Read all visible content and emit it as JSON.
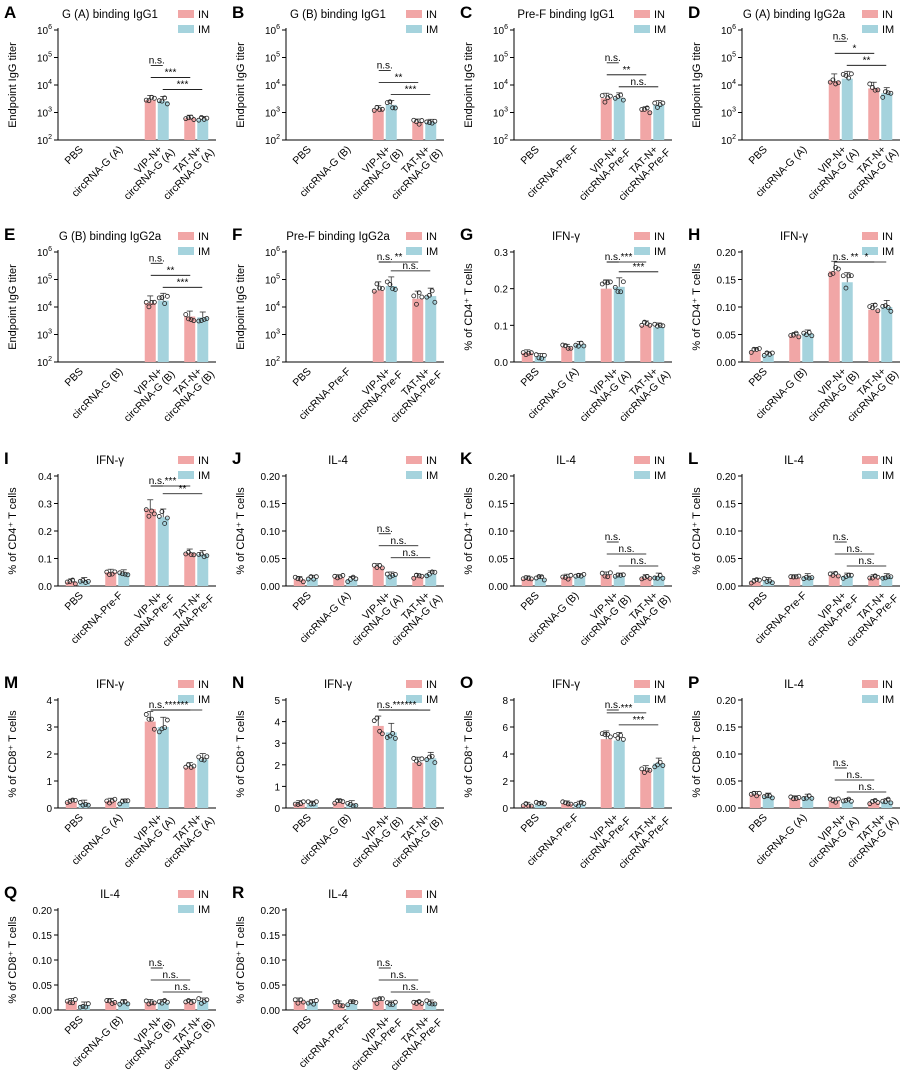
{
  "legend_labels": [
    "IN",
    "IM"
  ],
  "colors": {
    "IN": "#F1A6A6",
    "IM": "#A5D3DD"
  },
  "chart_data": [
    {
      "id": "A",
      "type": "bar",
      "title": "G (A) binding IgG1",
      "ylabel": "Endpoint IgG titer",
      "log": true,
      "ylim": [
        100,
        1000000
      ],
      "yticks": [
        "10^2",
        "10^3",
        "10^4",
        "10^5",
        "10^6"
      ],
      "categories": [
        "PBS",
        "circRNA-G (A)",
        "VIP-N+ circRNA-G (A)",
        "TAT-N+ circRNA-G (A)"
      ],
      "series": [
        {
          "name": "IN",
          "values": [
            null,
            null,
            2800,
            620
          ]
        },
        {
          "name": "IM",
          "values": [
            null,
            null,
            2600,
            560
          ]
        }
      ],
      "comparisons": [
        {
          "label": "n.s."
        },
        {
          "label": "***"
        },
        {
          "label": "***"
        }
      ]
    },
    {
      "id": "B",
      "type": "bar",
      "title": "G (B) binding IgG1",
      "ylabel": "Endpoint IgG titer",
      "log": true,
      "ylim": [
        100,
        1000000
      ],
      "yticks": [
        "10^2",
        "10^3",
        "10^4",
        "10^5",
        "10^6"
      ],
      "categories": [
        "PBS",
        "circRNA-G (B)",
        "VIP-N+ circRNA-G (B)",
        "TAT-N+ circRNA-G (B)"
      ],
      "series": [
        {
          "name": "IN",
          "values": [
            null,
            null,
            1300,
            450
          ]
        },
        {
          "name": "IM",
          "values": [
            null,
            null,
            1900,
            440
          ]
        }
      ],
      "comparisons": [
        {
          "label": "n.s."
        },
        {
          "label": "**"
        },
        {
          "label": "***"
        }
      ]
    },
    {
      "id": "C",
      "type": "bar",
      "title": "Pre-F binding IgG1",
      "ylabel": "Endpoint IgG titer",
      "log": true,
      "ylim": [
        100,
        1000000
      ],
      "yticks": [
        "10^2",
        "10^3",
        "10^4",
        "10^5",
        "10^6"
      ],
      "categories": [
        "PBS",
        "circRNA-Pre-F",
        "VIP-N+ circRNA-Pre-F",
        "TAT-N+ circRNA-Pre-F"
      ],
      "series": [
        {
          "name": "IN",
          "values": [
            null,
            null,
            3300,
            1200
          ]
        },
        {
          "name": "IM",
          "values": [
            null,
            null,
            3400,
            1900
          ]
        }
      ],
      "comparisons": [
        {
          "label": "n.s."
        },
        {
          "label": "**"
        },
        {
          "label": "n.s."
        }
      ]
    },
    {
      "id": "D",
      "type": "bar",
      "title": "G (A) binding IgG2a",
      "ylabel": "Endpoint IgG titer",
      "log": true,
      "ylim": [
        100,
        1000000
      ],
      "yticks": [
        "10^2",
        "10^3",
        "10^4",
        "10^5",
        "10^6"
      ],
      "categories": [
        "PBS",
        "circRNA-G (A)",
        "VIP-N+ circRNA-G (A)",
        "TAT-N+ circRNA-G (A)"
      ],
      "series": [
        {
          "name": "IN",
          "values": [
            null,
            null,
            14000,
            7500
          ]
        },
        {
          "name": "IM",
          "values": [
            null,
            null,
            17000,
            5000
          ]
        }
      ],
      "comparisons": [
        {
          "label": "n.s."
        },
        {
          "label": "*"
        },
        {
          "label": "**"
        }
      ]
    },
    {
      "id": "E",
      "type": "bar",
      "title": "G (B) binding IgG2a",
      "ylabel": "Endpoint IgG titer",
      "log": true,
      "ylim": [
        100,
        1000000
      ],
      "yticks": [
        "10^2",
        "10^3",
        "10^4",
        "10^5",
        "10^6"
      ],
      "categories": [
        "PBS",
        "circRNA-G (B)",
        "VIP-N+ circRNA-G (B)",
        "TAT-N+ circRNA-G (B)"
      ],
      "series": [
        {
          "name": "IN",
          "values": [
            null,
            null,
            14000,
            4500
          ]
        },
        {
          "name": "IM",
          "values": [
            null,
            null,
            17000,
            4200
          ]
        }
      ],
      "comparisons": [
        {
          "label": "n.s."
        },
        {
          "label": "**"
        },
        {
          "label": "***"
        }
      ]
    },
    {
      "id": "F",
      "type": "bar",
      "title": "Pre-F binding IgG2a",
      "ylabel": "Endpoint IgG titer",
      "log": true,
      "ylim": [
        100,
        1000000
      ],
      "yticks": [
        "10^2",
        "10^3",
        "10^4",
        "10^5",
        "10^6"
      ],
      "categories": [
        "PBS",
        "circRNA-Pre-F",
        "VIP-N+ circRNA-Pre-F",
        "TAT-N+ circRNA-Pre-F"
      ],
      "series": [
        {
          "name": "IN",
          "values": [
            null,
            null,
            40000,
            20000
          ]
        },
        {
          "name": "IM",
          "values": [
            null,
            null,
            58000,
            25000
          ]
        }
      ],
      "comparisons": [
        {
          "label": "n.s."
        },
        {
          "label": "**"
        },
        {
          "label": "n.s."
        }
      ]
    },
    {
      "id": "G",
      "type": "bar",
      "title": "IFN-γ",
      "ylabel": "% of CD4⁺ T cells",
      "log": false,
      "ylim": [
        0,
        0.3
      ],
      "yticks": [
        "0.0",
        "0.1",
        "0.2",
        "0.3"
      ],
      "categories": [
        "PBS",
        "circRNA-G (A)",
        "VIP-N+ circRNA-G (A)",
        "TAT-N+ circRNA-G (A)"
      ],
      "series": [
        {
          "name": "IN",
          "values": [
            0.025,
            0.04,
            0.2,
            0.1
          ]
        },
        {
          "name": "IM",
          "values": [
            0.015,
            0.048,
            0.205,
            0.095
          ]
        }
      ],
      "comparisons": [
        {
          "label": "n.s."
        },
        {
          "label": "***"
        },
        {
          "label": "***"
        }
      ]
    },
    {
      "id": "H",
      "type": "bar",
      "title": "IFN-γ",
      "ylabel": "% of CD4⁺ T cells",
      "log": false,
      "ylim": [
        0,
        0.2
      ],
      "yticks": [
        "0.00",
        "0.05",
        "0.10",
        "0.15",
        "0.20"
      ],
      "categories": [
        "PBS",
        "circRNA-G (B)",
        "VIP-N+ circRNA-G (B)",
        "TAT-N+ circRNA-G (B)"
      ],
      "series": [
        {
          "name": "IN",
          "values": [
            0.02,
            0.048,
            0.165,
            0.095
          ]
        },
        {
          "name": "IM",
          "values": [
            0.013,
            0.052,
            0.145,
            0.1
          ]
        }
      ],
      "comparisons": [
        {
          "label": "n.s."
        },
        {
          "label": "**"
        },
        {
          "label": "*"
        }
      ]
    },
    {
      "id": "I",
      "type": "bar",
      "title": "IFN-γ",
      "ylabel": "% of CD4⁺ T cells",
      "log": false,
      "ylim": [
        0,
        0.4
      ],
      "yticks": [
        "0.0",
        "0.1",
        "0.2",
        "0.3",
        "0.4"
      ],
      "categories": [
        "PBS",
        "circRNA-Pre-F",
        "VIP-N+ circRNA-Pre-F",
        "TAT-N+ circRNA-Pre-F"
      ],
      "series": [
        {
          "name": "IN",
          "values": [
            0.015,
            0.05,
            0.28,
            0.12
          ]
        },
        {
          "name": "IM",
          "values": [
            0.02,
            0.048,
            0.25,
            0.115
          ]
        }
      ],
      "comparisons": [
        {
          "label": "n.s."
        },
        {
          "label": "***"
        },
        {
          "label": "**"
        }
      ]
    },
    {
      "id": "J",
      "type": "bar",
      "title": "IL-4",
      "ylabel": "% of CD4⁺ T cells",
      "log": false,
      "ylim": [
        0,
        0.2
      ],
      "yticks": [
        "0.00",
        "0.05",
        "0.10",
        "0.15",
        "0.20"
      ],
      "categories": [
        "PBS",
        "circRNA-G (A)",
        "VIP-N+ circRNA-G (A)",
        "TAT-N+ circRNA-G (A)"
      ],
      "series": [
        {
          "name": "IN",
          "values": [
            0.012,
            0.015,
            0.035,
            0.017
          ]
        },
        {
          "name": "IM",
          "values": [
            0.014,
            0.012,
            0.02,
            0.022
          ]
        }
      ],
      "comparisons": [
        {
          "label": "n.s."
        },
        {
          "label": "n.s."
        },
        {
          "label": "n.s."
        }
      ]
    },
    {
      "id": "K",
      "type": "bar",
      "title": "IL-4",
      "ylabel": "% of CD4⁺ T cells",
      "log": false,
      "ylim": [
        0,
        0.2
      ],
      "yticks": [
        "0.00",
        "0.05",
        "0.10",
        "0.15",
        "0.20"
      ],
      "categories": [
        "PBS",
        "circRNA-G (B)",
        "VIP-N+ circRNA-G (B)",
        "TAT-N+ circRNA-G (B)"
      ],
      "series": [
        {
          "name": "IN",
          "values": [
            0.013,
            0.016,
            0.02,
            0.015
          ]
        },
        {
          "name": "IM",
          "values": [
            0.013,
            0.017,
            0.018,
            0.018
          ]
        }
      ],
      "comparisons": [
        {
          "label": "n.s."
        },
        {
          "label": "n.s."
        },
        {
          "label": "n.s."
        }
      ]
    },
    {
      "id": "L",
      "type": "bar",
      "title": "IL-4",
      "ylabel": "% of CD4⁺ T cells",
      "log": false,
      "ylim": [
        0,
        0.2
      ],
      "yticks": [
        "0.00",
        "0.05",
        "0.10",
        "0.15",
        "0.20"
      ],
      "categories": [
        "PBS",
        "circRNA-Pre-F",
        "VIP-N+ circRNA-Pre-F",
        "TAT-N+ circRNA-Pre-F"
      ],
      "series": [
        {
          "name": "IN",
          "values": [
            0.008,
            0.015,
            0.02,
            0.015
          ]
        },
        {
          "name": "IM",
          "values": [
            0.01,
            0.017,
            0.018,
            0.017
          ]
        }
      ],
      "comparisons": [
        {
          "label": "n.s."
        },
        {
          "label": "n.s."
        },
        {
          "label": "n.s."
        }
      ]
    },
    {
      "id": "M",
      "type": "bar",
      "title": "IFN-γ",
      "ylabel": "% of CD8⁺ T cells",
      "log": false,
      "ylim": [
        0,
        4
      ],
      "yticks": [
        "0",
        "1",
        "2",
        "3",
        "4"
      ],
      "categories": [
        "PBS",
        "circRNA-G (A)",
        "VIP-N+ circRNA-G (A)",
        "TAT-N+ circRNA-G (A)"
      ],
      "series": [
        {
          "name": "IN",
          "values": [
            0.22,
            0.25,
            3.2,
            1.5
          ]
        },
        {
          "name": "IM",
          "values": [
            0.18,
            0.22,
            3.0,
            1.8
          ]
        }
      ],
      "comparisons": [
        {
          "label": "n.s."
        },
        {
          "label": "***"
        },
        {
          "label": "***"
        }
      ]
    },
    {
      "id": "N",
      "type": "bar",
      "title": "IFN-γ",
      "ylabel": "% of CD8⁺ T cells",
      "log": false,
      "ylim": [
        0,
        5
      ],
      "yticks": [
        "0",
        "1",
        "2",
        "3",
        "4",
        "5"
      ],
      "categories": [
        "PBS",
        "circRNA-G (B)",
        "VIP-N+ circRNA-G (B)",
        "TAT-N+ circRNA-G (B)"
      ],
      "series": [
        {
          "name": "IN",
          "values": [
            0.2,
            0.25,
            3.8,
            2.1
          ]
        },
        {
          "name": "IM",
          "values": [
            0.18,
            0.2,
            3.5,
            2.3
          ]
        }
      ],
      "comparisons": [
        {
          "label": "n.s."
        },
        {
          "label": "***"
        },
        {
          "label": "***"
        }
      ]
    },
    {
      "id": "O",
      "type": "bar",
      "title": "IFN-γ",
      "ylabel": "% of CD8⁺ T cells",
      "log": false,
      "ylim": [
        0,
        8
      ],
      "yticks": [
        "0",
        "2",
        "4",
        "6",
        "8"
      ],
      "categories": [
        "PBS",
        "circRNA-Pre-F",
        "VIP-N+ circRNA-Pre-F",
        "TAT-N+ circRNA-Pre-F"
      ],
      "series": [
        {
          "name": "IN",
          "values": [
            0.2,
            0.3,
            5.1,
            2.8
          ]
        },
        {
          "name": "IM",
          "values": [
            0.25,
            0.28,
            5.0,
            3.3
          ]
        }
      ],
      "comparisons": [
        {
          "label": "n.s."
        },
        {
          "label": "***"
        },
        {
          "label": "***"
        }
      ]
    },
    {
      "id": "P",
      "type": "bar",
      "title": "IL-4",
      "ylabel": "% of CD8⁺ T cells",
      "log": false,
      "ylim": [
        0,
        0.2
      ],
      "yticks": [
        "0.00",
        "0.05",
        "0.10",
        "0.15",
        "0.20"
      ],
      "categories": [
        "PBS",
        "circRNA-G (A)",
        "VIP-N+ circRNA-G (A)",
        "TAT-N+ circRNA-G (A)"
      ],
      "series": [
        {
          "name": "IN",
          "values": [
            0.025,
            0.017,
            0.013,
            0.01
          ]
        },
        {
          "name": "IM",
          "values": [
            0.022,
            0.02,
            0.012,
            0.012
          ]
        }
      ],
      "comparisons": [
        {
          "label": "n.s."
        },
        {
          "label": "n.s."
        },
        {
          "label": "n.s."
        }
      ]
    },
    {
      "id": "Q",
      "type": "bar",
      "title": "IL-4",
      "ylabel": "% of CD8⁺ T cells",
      "log": false,
      "ylim": [
        0,
        0.2
      ],
      "yticks": [
        "0.00",
        "0.05",
        "0.10",
        "0.15",
        "0.20"
      ],
      "categories": [
        "PBS",
        "circRNA-G (B)",
        "VIP-N+ circRNA-G (B)",
        "TAT-N+ circRNA-G (B)"
      ],
      "series": [
        {
          "name": "IN",
          "values": [
            0.017,
            0.017,
            0.015,
            0.015
          ]
        },
        {
          "name": "IM",
          "values": [
            0.01,
            0.015,
            0.015,
            0.018
          ]
        }
      ],
      "comparisons": [
        {
          "label": "n.s."
        },
        {
          "label": "n.s."
        },
        {
          "label": "n.s."
        }
      ]
    },
    {
      "id": "R",
      "type": "bar",
      "title": "IL-4",
      "ylabel": "% of CD8⁺ T cells",
      "log": false,
      "ylim": [
        0,
        0.2
      ],
      "yticks": [
        "0.00",
        "0.05",
        "0.10",
        "0.15",
        "0.20"
      ],
      "categories": [
        "PBS",
        "circRNA-Pre-F",
        "VIP-N+ circRNA-Pre-F",
        "TAT-N+ circRNA-Pre-F"
      ],
      "series": [
        {
          "name": "IN",
          "values": [
            0.018,
            0.012,
            0.018,
            0.013
          ]
        },
        {
          "name": "IM",
          "values": [
            0.015,
            0.012,
            0.012,
            0.014
          ]
        }
      ],
      "comparisons": [
        {
          "label": "n.s."
        },
        {
          "label": "n.s."
        },
        {
          "label": "n.s."
        }
      ]
    }
  ]
}
